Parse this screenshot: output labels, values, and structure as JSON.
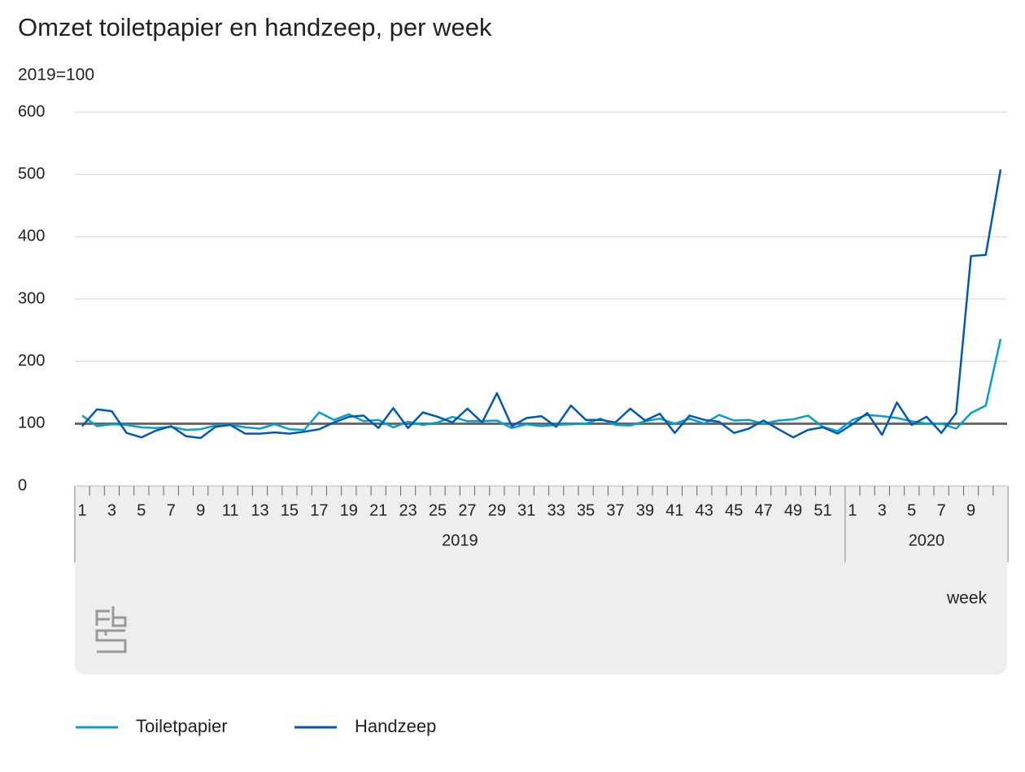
{
  "chart_data": {
    "type": "line",
    "title": "Omzet toiletpapier en handzeep, per week",
    "subtitle": "2019=100",
    "x_label": "week",
    "groups": [
      {
        "label": "2019",
        "categories": [
          "1",
          null,
          "3",
          null,
          "5",
          null,
          "7",
          null,
          "9",
          null,
          "11",
          null,
          "13",
          null,
          "15",
          null,
          "17",
          null,
          "19",
          null,
          "21",
          null,
          "23",
          null,
          "25",
          null,
          "27",
          null,
          "29",
          null,
          "31",
          null,
          "33",
          null,
          "35",
          null,
          "37",
          null,
          "39",
          null,
          "41",
          null,
          "43",
          null,
          "45",
          null,
          "47",
          null,
          "49",
          null,
          "51",
          null
        ]
      },
      {
        "label": "2020",
        "categories": [
          "1",
          null,
          "3",
          null,
          "5",
          null,
          "7",
          null,
          "9",
          null,
          null
        ]
      }
    ],
    "series": [
      {
        "name": "Toiletpapier",
        "color": "#00a1cd",
        "values": [
          113,
          96,
          99,
          98,
          94,
          93,
          95,
          90,
          91,
          97,
          98,
          94,
          92,
          99,
          91,
          90,
          118,
          106,
          115,
          104,
          106,
          94,
          103,
          98,
          102,
          111,
          104,
          104,
          105,
          93,
          99,
          96,
          98,
          99,
          100,
          108,
          98,
          97,
          104,
          108,
          100,
          108,
          100,
          114,
          105,
          106,
          100,
          105,
          107,
          113,
          95,
          88,
          106,
          114,
          112,
          109,
          104,
          100,
          100,
          92,
          117,
          129,
          236
        ]
      },
      {
        "name": "Handzeep",
        "color": "#0058b8",
        "values": [
          96,
          123,
          120,
          85,
          78,
          89,
          96,
          80,
          77,
          95,
          98,
          84,
          84,
          86,
          84,
          87,
          91,
          102,
          111,
          113,
          93,
          125,
          93,
          118,
          111,
          102,
          124,
          102,
          149,
          96,
          109,
          112,
          95,
          129,
          106,
          106,
          102,
          124,
          105,
          116,
          85,
          113,
          106,
          103,
          85,
          92,
          105,
          91,
          78,
          90,
          94,
          84,
          99,
          117,
          82,
          134,
          98,
          111,
          85,
          117,
          369,
          371,
          508
        ]
      }
    ],
    "reference_line": 100,
    "ylim": [
      0,
      600
    ],
    "yticks": [
      0,
      100,
      200,
      300,
      400,
      500,
      600
    ],
    "grid": true
  }
}
